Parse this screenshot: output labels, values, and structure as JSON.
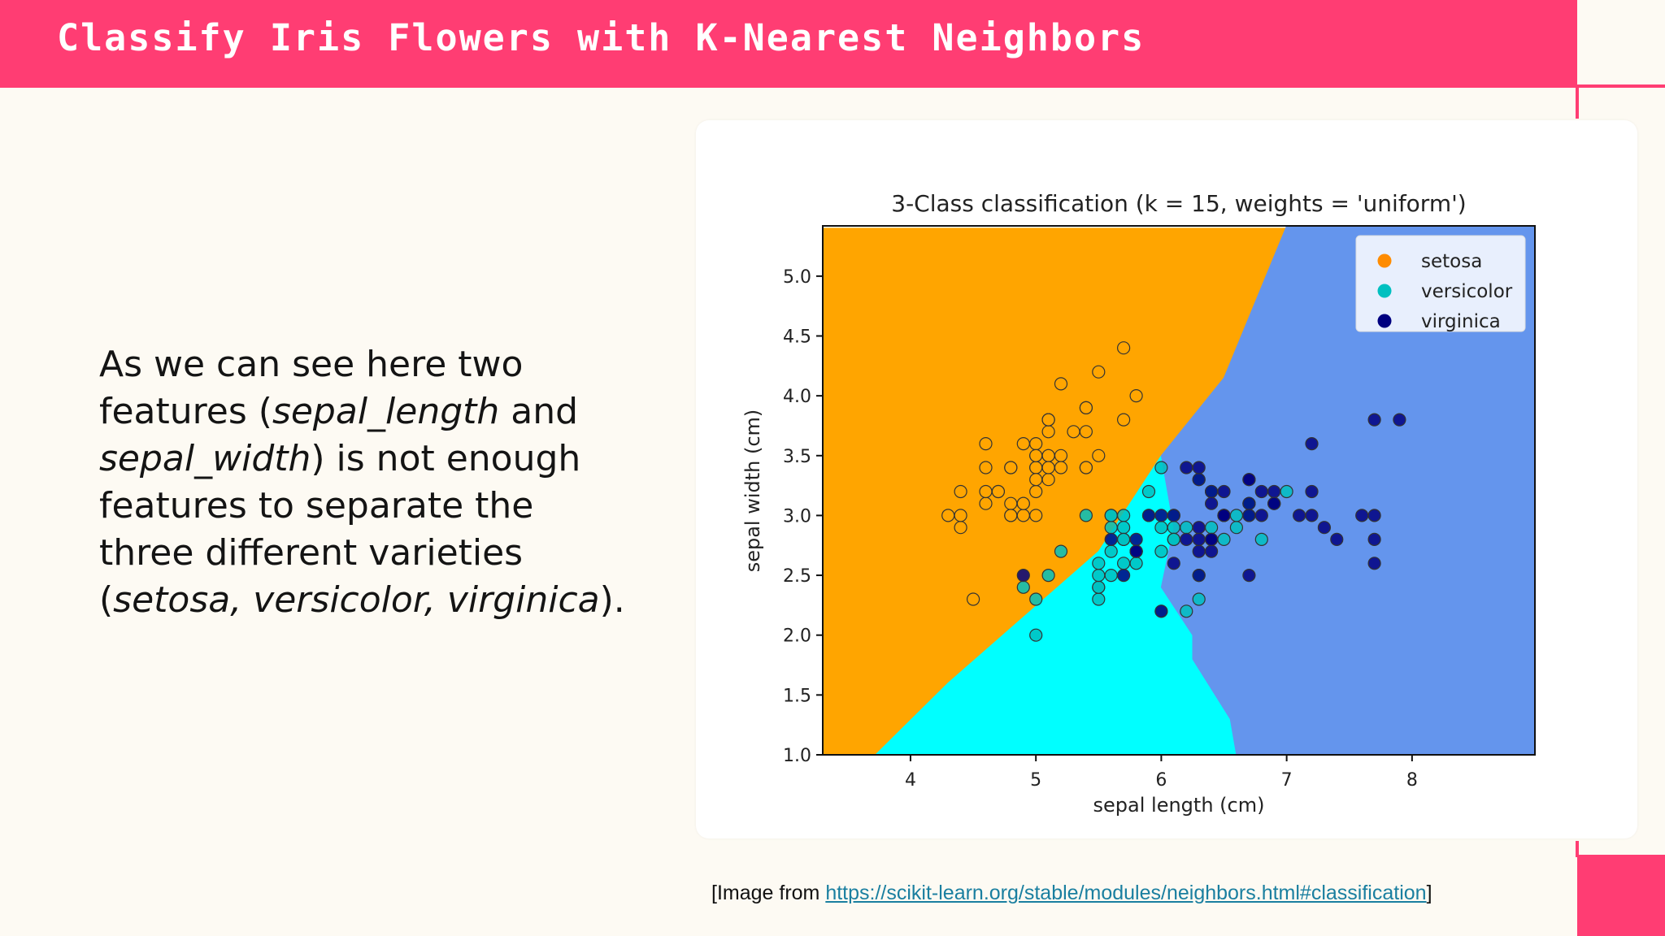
{
  "slide": {
    "title": "Classify Iris Flowers with K-Nearest Neighbors",
    "colors": {
      "accent": "#ff3d73",
      "background": "#fdfaf3"
    }
  },
  "body": {
    "parts": [
      {
        "text": "As we can see here two features (",
        "italic": false
      },
      {
        "text": "sepal_length",
        "italic": true
      },
      {
        "text": " and ",
        "italic": false
      },
      {
        "text": "sepal_width",
        "italic": true
      },
      {
        "text": ") is not enough features to separate the three different varieties (",
        "italic": false
      },
      {
        "text": "setosa, versicolor, virginica",
        "italic": true
      },
      {
        "text": ").",
        "italic": false
      }
    ]
  },
  "caption": {
    "prefix": "[Image from ",
    "link": "https://scikit-learn.org/stable/modules/neighbors.html#classification",
    "suffix": "]"
  },
  "chart_data": {
    "type": "scatter",
    "title": "3-Class classification (k = 15, weights = 'uniform')",
    "xlabel": "sepal length (cm)",
    "ylabel": "sepal width (cm)",
    "xlim": [
      3.3,
      8.98
    ],
    "ylim": [
      1.0,
      5.42
    ],
    "xticks": [
      4,
      5,
      6,
      7,
      8
    ],
    "yticks": [
      1.0,
      1.5,
      2.0,
      2.5,
      3.0,
      3.5,
      4.0,
      4.5,
      5.0
    ],
    "legend_position": "top-right",
    "decision_regions": [
      {
        "class": "setosa",
        "color": "#ffa500",
        "polygon": [
          [
            3.3,
            1.0
          ],
          [
            3.72,
            1.0
          ],
          [
            4.3,
            1.6
          ],
          [
            5.5,
            2.7
          ],
          [
            6.0,
            3.5
          ],
          [
            6.5,
            4.15
          ],
          [
            7.0,
            5.4
          ],
          [
            3.3,
            5.4
          ]
        ]
      },
      {
        "class": "versicolor",
        "color": "#00ffff",
        "polygon": [
          [
            3.72,
            1.0
          ],
          [
            6.6,
            1.0
          ],
          [
            6.55,
            1.3
          ],
          [
            6.25,
            1.8
          ],
          [
            6.25,
            2.0
          ],
          [
            6.0,
            2.4
          ],
          [
            6.1,
            2.9
          ],
          [
            6.0,
            3.5
          ],
          [
            5.5,
            2.7
          ],
          [
            4.3,
            1.6
          ]
        ]
      },
      {
        "class": "virginica",
        "color": "#6495ed",
        "polygon": [
          [
            6.6,
            1.0
          ],
          [
            8.98,
            1.0
          ],
          [
            8.98,
            5.42
          ],
          [
            7.0,
            5.42
          ],
          [
            6.5,
            4.15
          ],
          [
            6.0,
            3.5
          ],
          [
            6.1,
            2.9
          ],
          [
            6.0,
            2.4
          ],
          [
            6.25,
            2.0
          ],
          [
            6.25,
            1.8
          ],
          [
            6.55,
            1.3
          ]
        ]
      }
    ],
    "series": [
      {
        "name": "setosa",
        "color": "#ffa500",
        "legend_color": "#ff8c00",
        "points": [
          [
            5.1,
            3.5
          ],
          [
            4.9,
            3.0
          ],
          [
            4.7,
            3.2
          ],
          [
            4.6,
            3.1
          ],
          [
            5.0,
            3.6
          ],
          [
            5.4,
            3.9
          ],
          [
            4.6,
            3.4
          ],
          [
            5.0,
            3.4
          ],
          [
            4.4,
            2.9
          ],
          [
            4.9,
            3.1
          ],
          [
            5.4,
            3.7
          ],
          [
            4.8,
            3.4
          ],
          [
            4.8,
            3.0
          ],
          [
            4.3,
            3.0
          ],
          [
            5.8,
            4.0
          ],
          [
            5.7,
            4.4
          ],
          [
            5.4,
            3.9
          ],
          [
            5.1,
            3.5
          ],
          [
            5.7,
            3.8
          ],
          [
            5.1,
            3.8
          ],
          [
            5.4,
            3.4
          ],
          [
            5.1,
            3.7
          ],
          [
            4.6,
            3.6
          ],
          [
            5.1,
            3.3
          ],
          [
            4.8,
            3.4
          ],
          [
            5.0,
            3.0
          ],
          [
            5.0,
            3.4
          ],
          [
            5.2,
            3.5
          ],
          [
            5.2,
            3.4
          ],
          [
            4.7,
            3.2
          ],
          [
            4.8,
            3.1
          ],
          [
            5.4,
            3.4
          ],
          [
            5.2,
            4.1
          ],
          [
            5.5,
            4.2
          ],
          [
            4.9,
            3.1
          ],
          [
            5.0,
            3.2
          ],
          [
            5.5,
            3.5
          ],
          [
            4.9,
            3.6
          ],
          [
            4.4,
            3.0
          ],
          [
            5.1,
            3.4
          ],
          [
            5.0,
            3.5
          ],
          [
            4.5,
            2.3
          ],
          [
            4.4,
            3.2
          ],
          [
            5.0,
            3.5
          ],
          [
            5.1,
            3.8
          ],
          [
            4.8,
            3.0
          ],
          [
            5.1,
            3.8
          ],
          [
            4.6,
            3.2
          ],
          [
            5.3,
            3.7
          ],
          [
            5.0,
            3.3
          ]
        ]
      },
      {
        "name": "versicolor",
        "color": "#00c0c0",
        "legend_color": "#00c0c0",
        "points": [
          [
            7.0,
            3.2
          ],
          [
            6.4,
            3.2
          ],
          [
            6.9,
            3.1
          ],
          [
            5.5,
            2.3
          ],
          [
            6.5,
            2.8
          ],
          [
            5.7,
            2.8
          ],
          [
            6.3,
            3.3
          ],
          [
            4.9,
            2.4
          ],
          [
            6.6,
            2.9
          ],
          [
            5.2,
            2.7
          ],
          [
            5.0,
            2.0
          ],
          [
            5.9,
            3.0
          ],
          [
            6.0,
            2.2
          ],
          [
            6.1,
            2.9
          ],
          [
            5.6,
            2.9
          ],
          [
            6.7,
            3.1
          ],
          [
            5.6,
            3.0
          ],
          [
            5.8,
            2.7
          ],
          [
            6.2,
            2.2
          ],
          [
            5.6,
            2.5
          ],
          [
            5.9,
            3.2
          ],
          [
            6.1,
            2.8
          ],
          [
            6.3,
            2.5
          ],
          [
            6.1,
            2.8
          ],
          [
            6.4,
            2.9
          ],
          [
            6.6,
            3.0
          ],
          [
            6.8,
            2.8
          ],
          [
            6.7,
            3.0
          ],
          [
            6.0,
            2.9
          ],
          [
            5.7,
            2.6
          ],
          [
            5.5,
            2.4
          ],
          [
            5.5,
            2.4
          ],
          [
            5.8,
            2.7
          ],
          [
            6.0,
            2.7
          ],
          [
            5.4,
            3.0
          ],
          [
            6.0,
            3.4
          ],
          [
            6.7,
            3.1
          ],
          [
            6.3,
            2.3
          ],
          [
            5.6,
            3.0
          ],
          [
            5.5,
            2.5
          ],
          [
            5.5,
            2.6
          ],
          [
            6.1,
            3.0
          ],
          [
            5.8,
            2.6
          ],
          [
            5.0,
            2.3
          ],
          [
            5.6,
            2.7
          ],
          [
            5.7,
            3.0
          ],
          [
            5.7,
            2.9
          ],
          [
            6.2,
            2.9
          ],
          [
            5.1,
            2.5
          ],
          [
            5.7,
            2.8
          ]
        ]
      },
      {
        "name": "virginica",
        "color": "#000080",
        "legend_color": "#000080",
        "points": [
          [
            6.3,
            3.3
          ],
          [
            5.8,
            2.7
          ],
          [
            7.1,
            3.0
          ],
          [
            6.3,
            2.9
          ],
          [
            6.5,
            3.0
          ],
          [
            7.6,
            3.0
          ],
          [
            4.9,
            2.5
          ],
          [
            7.3,
            2.9
          ],
          [
            6.7,
            2.5
          ],
          [
            7.2,
            3.6
          ],
          [
            6.5,
            3.2
          ],
          [
            6.4,
            2.7
          ],
          [
            6.8,
            3.0
          ],
          [
            5.7,
            2.5
          ],
          [
            5.8,
            2.8
          ],
          [
            6.4,
            3.2
          ],
          [
            6.5,
            3.0
          ],
          [
            7.7,
            3.8
          ],
          [
            7.7,
            2.6
          ],
          [
            6.0,
            2.2
          ],
          [
            6.9,
            3.2
          ],
          [
            5.6,
            2.8
          ],
          [
            7.7,
            2.8
          ],
          [
            6.3,
            2.7
          ],
          [
            6.7,
            3.3
          ],
          [
            7.2,
            3.2
          ],
          [
            6.2,
            2.8
          ],
          [
            6.1,
            3.0
          ],
          [
            6.4,
            2.8
          ],
          [
            7.2,
            3.0
          ],
          [
            7.4,
            2.8
          ],
          [
            7.9,
            3.8
          ],
          [
            6.4,
            2.8
          ],
          [
            6.3,
            2.8
          ],
          [
            6.1,
            2.6
          ],
          [
            7.7,
            3.0
          ],
          [
            6.3,
            3.4
          ],
          [
            6.4,
            3.1
          ],
          [
            6.0,
            3.0
          ],
          [
            6.9,
            3.1
          ],
          [
            6.7,
            3.1
          ],
          [
            6.9,
            3.1
          ],
          [
            5.8,
            2.7
          ],
          [
            6.8,
            3.2
          ],
          [
            6.7,
            3.3
          ],
          [
            6.7,
            3.0
          ],
          [
            6.3,
            2.5
          ],
          [
            6.5,
            3.0
          ],
          [
            6.2,
            3.4
          ],
          [
            5.9,
            3.0
          ]
        ]
      }
    ]
  }
}
